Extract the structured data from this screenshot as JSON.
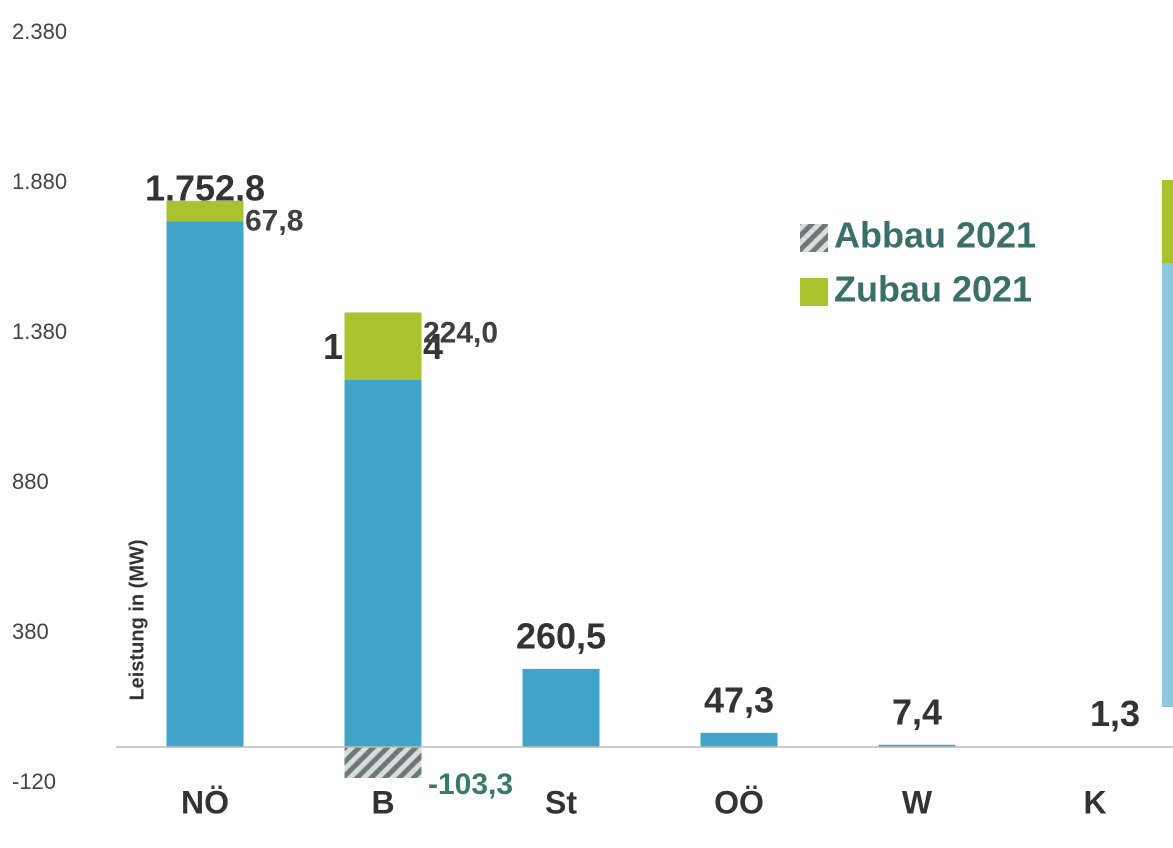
{
  "chart_data": {
    "type": "bar",
    "stacked": true,
    "y_axis_label": "Leistung in (MW)",
    "categories": [
      "NÖ",
      "B",
      "St",
      "OÖ",
      "W",
      "K"
    ],
    "series": [
      {
        "color": "#41a4c8",
        "values": [
          1752.8,
          1224.4,
          260.5,
          47.3,
          7.4,
          1.3
        ],
        "value_labels": [
          "1.752,8",
          "1.224,4",
          "260,5",
          "47,3",
          "7,4",
          "1,3"
        ]
      },
      {
        "name": "Zubau 2021",
        "color": "#aac22e",
        "values": [
          67.8,
          224.0,
          null,
          null,
          null,
          null
        ],
        "value_labels": [
          "67,8",
          "224,0",
          null,
          null,
          null,
          null
        ]
      },
      {
        "name": "Abbau 2021",
        "color": "#9aa3a3",
        "hatched": true,
        "values": [
          null,
          -103.3,
          null,
          null,
          null,
          null
        ],
        "value_labels": [
          null,
          "-103,3",
          null,
          null,
          null,
          null
        ]
      }
    ],
    "ylim": [
      -120,
      2380
    ],
    "yticks": [
      -120,
      380,
      880,
      {
        "value": 1380,
        "label": "1.380"
      },
      {
        "value": 1880,
        "label": "1.880"
      },
      {
        "value": 2380,
        "label": "2.380"
      }
    ]
  }
}
